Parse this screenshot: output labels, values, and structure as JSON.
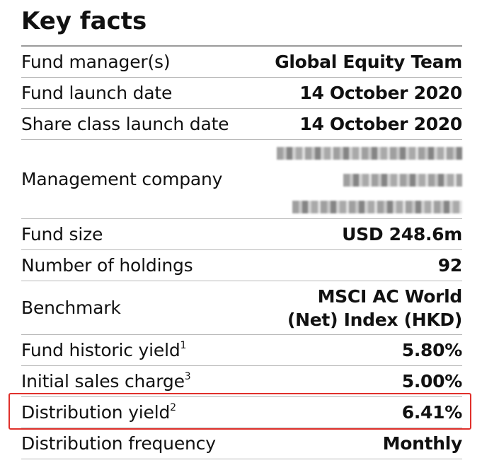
{
  "title": "Key facts",
  "rows": [
    {
      "label": "Fund manager(s)",
      "sup": "",
      "value": "Global Equity Team"
    },
    {
      "label": "Fund launch date",
      "sup": "",
      "value": "14 October 2020"
    },
    {
      "label": "Share class launch date",
      "sup": "",
      "value": "14 October 2020"
    },
    {
      "label": "Management company",
      "sup": "",
      "value": ""
    },
    {
      "label": "Fund size",
      "sup": "",
      "value": "USD 248.6m"
    },
    {
      "label": "Number of holdings",
      "sup": "",
      "value": "92"
    },
    {
      "label": "Benchmark",
      "sup": "",
      "value_line1": "MSCI AC World",
      "value_line2": "(Net) Index (HKD)"
    },
    {
      "label": "Fund historic yield",
      "sup": "1",
      "value": "5.80%"
    },
    {
      "label": "Initial sales charge",
      "sup": "3",
      "value": "5.00%"
    },
    {
      "label": "Distribution yield",
      "sup": "2",
      "value": "6.41%"
    },
    {
      "label": "Distribution frequency",
      "sup": "",
      "value": "Monthly"
    }
  ],
  "highlight_color": "#e0302b",
  "redacted_note": "blurred"
}
